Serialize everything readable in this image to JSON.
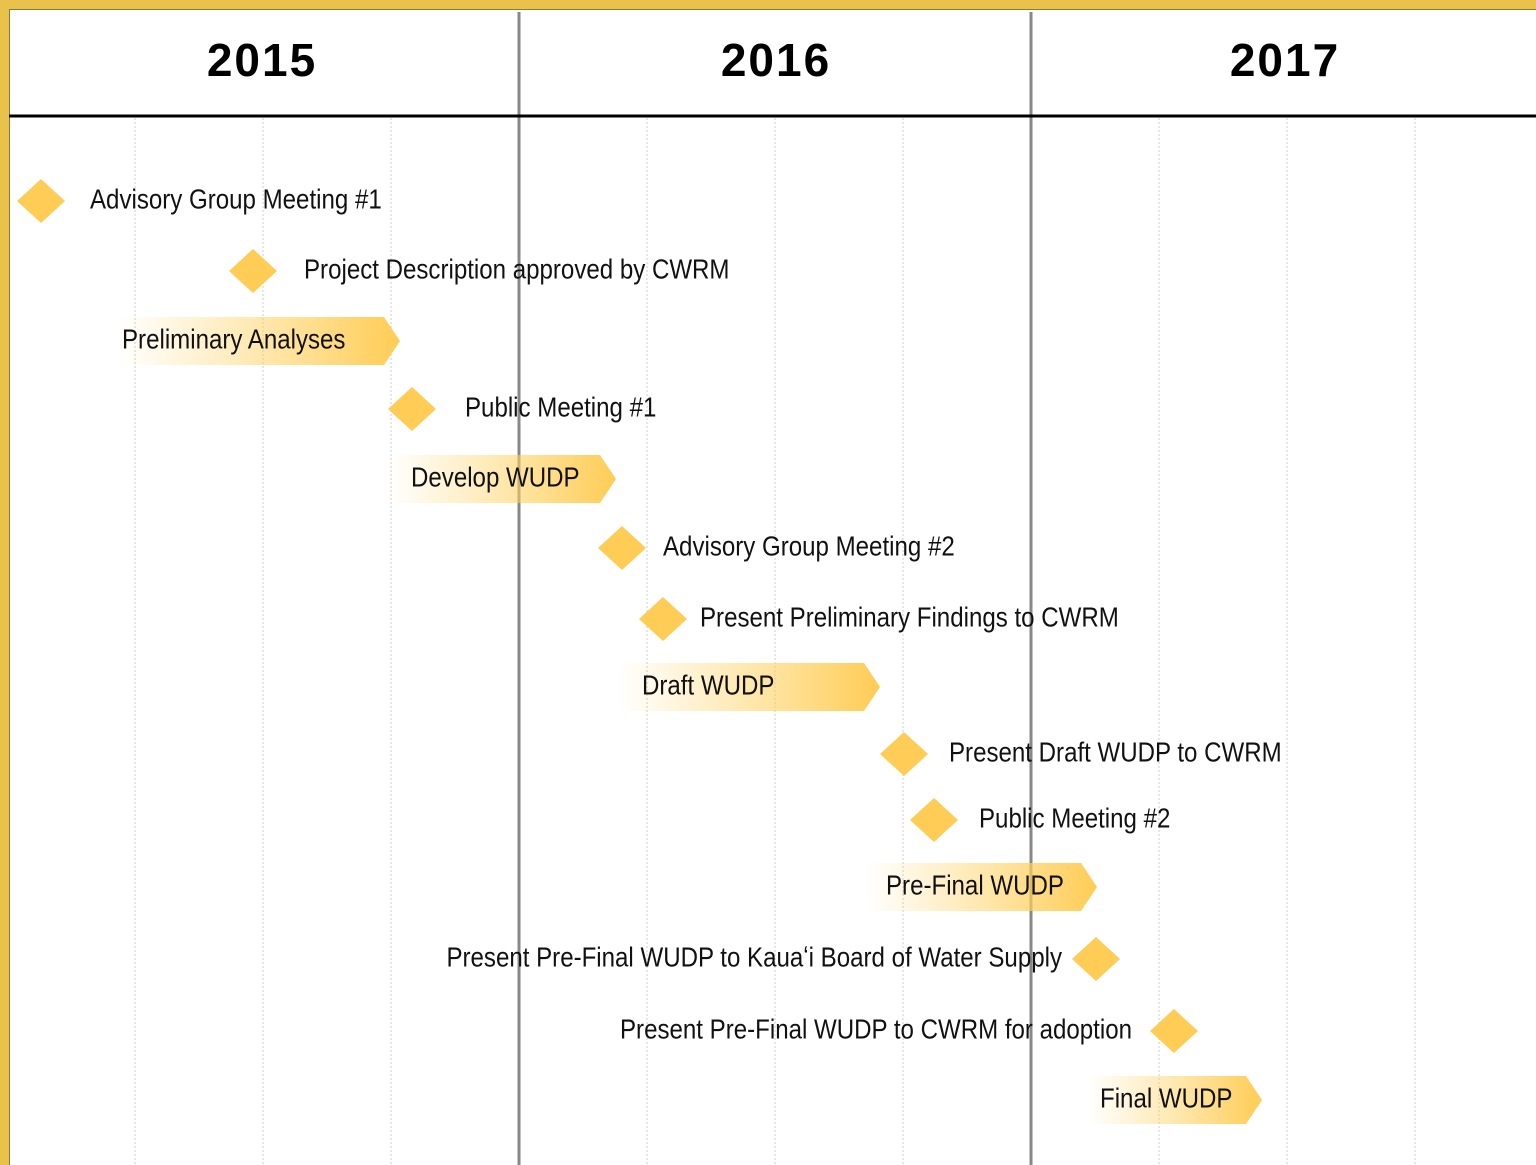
{
  "header": {
    "years": [
      "2015",
      "2016",
      "2017"
    ]
  },
  "items": [
    {
      "kind": "milestone",
      "label": "Advisory Group Meeting #1"
    },
    {
      "kind": "milestone",
      "label": "Project Description approved by CWRM"
    },
    {
      "kind": "task",
      "label": "Preliminary Analyses"
    },
    {
      "kind": "milestone",
      "label": "Public Meeting #1"
    },
    {
      "kind": "task",
      "label": "Develop WUDP"
    },
    {
      "kind": "milestone",
      "label": "Advisory Group Meeting #2"
    },
    {
      "kind": "milestone",
      "label": "Present Preliminary Findings to CWRM"
    },
    {
      "kind": "task",
      "label": "Draft WUDP"
    },
    {
      "kind": "milestone",
      "label": "Present Draft WUDP to CWRM"
    },
    {
      "kind": "milestone",
      "label": "Public Meeting #2"
    },
    {
      "kind": "task",
      "label": "Pre-Final WUDP"
    },
    {
      "kind": "milestone",
      "label": "Present Pre-Final WUDP to Kauaʻi Board of Water Supply"
    },
    {
      "kind": "milestone",
      "label": "Present Pre-Final WUDP to CWRM for adoption"
    },
    {
      "kind": "task",
      "label": "Final WUDP"
    }
  ]
}
